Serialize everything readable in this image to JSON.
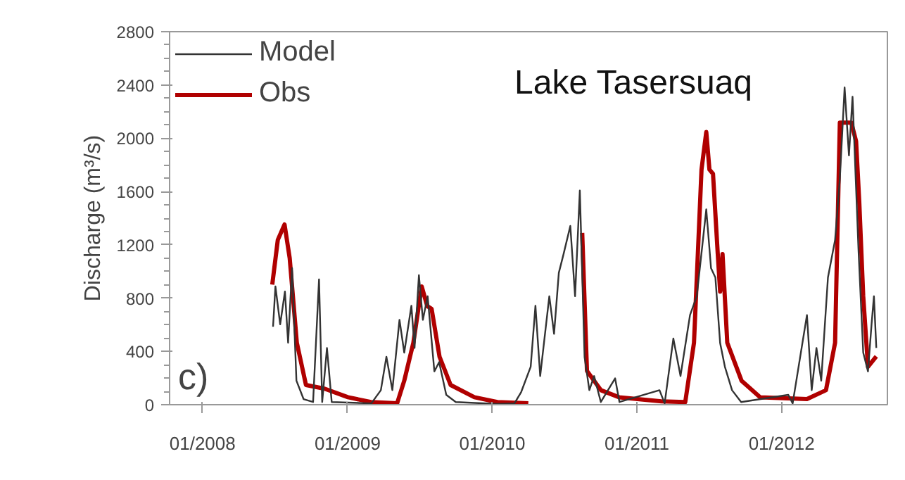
{
  "chart_data": {
    "type": "line",
    "title": "Lake Tasersuaq",
    "ylabel": "Discharge (m³/s)",
    "annotations": [
      "c)"
    ],
    "xlim": [
      "2007-10-10",
      "2012-09-24"
    ],
    "xticks": [
      {
        "value": "2008-01-01",
        "label": "01/2008"
      },
      {
        "value": "2009-01-01",
        "label": "01/2009"
      },
      {
        "value": "2010-01-01",
        "label": "01/2010"
      },
      {
        "value": "2011-01-01",
        "label": "01/2011"
      },
      {
        "value": "2012-01-01",
        "label": "01/2012"
      }
    ],
    "ylim": [
      0,
      2800
    ],
    "yticks": [
      0,
      400,
      800,
      1200,
      1600,
      2000,
      2400,
      2800
    ],
    "grid": false,
    "legend": "top left",
    "series": [
      {
        "name": "Model",
        "color": "#333333",
        "x": [
          "2008-06-27",
          "2008-07-03",
          "2008-07-15",
          "2008-07-27",
          "2008-08-04",
          "2008-08-14",
          "2008-08-25",
          "2008-09-12",
          "2008-10-06",
          "2008-10-21",
          "2008-10-29",
          "2008-11-10",
          "2008-11-22",
          "2009-03-02",
          "2009-03-26",
          "2009-04-09",
          "2009-04-24",
          "2009-05-12",
          "2009-05-24",
          "2009-06-11",
          "2009-06-19",
          "2009-06-30",
          "2009-07-10",
          "2009-07-22",
          "2009-08-08",
          "2009-08-20",
          "2009-09-07",
          "2009-10-01",
          "2010-01-15",
          "2010-02-26",
          "2010-03-15",
          "2010-04-08",
          "2010-04-20",
          "2010-05-02",
          "2010-05-25",
          "2010-06-06",
          "2010-06-18",
          "2010-06-30",
          "2010-07-17",
          "2010-07-29",
          "2010-08-10",
          "2010-08-22",
          "2010-09-03",
          "2010-09-15",
          "2010-10-02",
          "2010-11-07",
          "2010-11-18",
          "2011-02-27",
          "2011-03-12",
          "2011-04-03",
          "2011-04-21",
          "2011-05-15",
          "2011-06-01",
          "2011-06-25",
          "2011-07-07",
          "2011-07-18",
          "2011-07-30",
          "2011-08-11",
          "2011-08-29",
          "2011-09-21",
          "2012-01-18",
          "2012-01-29",
          "2012-03-05",
          "2012-03-17",
          "2012-03-29",
          "2012-04-10",
          "2012-04-27",
          "2012-05-15",
          "2012-05-27",
          "2012-06-08",
          "2012-06-19",
          "2012-06-28",
          "2012-07-13",
          "2012-07-25",
          "2012-08-06",
          "2012-08-15",
          "2012-08-21",
          "2012-08-27"
        ],
        "values": [
          585,
          888,
          603,
          849,
          465,
          1025,
          180,
          42,
          20,
          941,
          20,
          426,
          20,
          10,
          109,
          360,
          109,
          637,
          391,
          743,
          426,
          972,
          637,
          814,
          250,
          320,
          74,
          20,
          5,
          10,
          95,
          285,
          743,
          215,
          814,
          532,
          990,
          1131,
          1342,
          814,
          1607,
          356,
          109,
          215,
          20,
          198,
          20,
          109,
          10,
          497,
          215,
          673,
          814,
          1466,
          1025,
          955,
          462,
          285,
          109,
          20,
          74,
          10,
          673,
          109,
          426,
          180,
          955,
          1237,
          1694,
          2381,
          1871,
          2312,
          1166,
          391,
          250,
          603,
          814,
          426
        ]
      },
      {
        "name": "Obs",
        "color": "#b00000",
        "x": [
          "2008-06-25",
          "2008-07-09",
          "2008-07-26",
          "2008-08-08",
          "2008-08-26",
          "2008-09-18",
          "2008-11-04",
          "2009-01-02",
          "2009-03-01",
          "2009-05-06",
          "2009-05-24",
          "2009-06-16",
          "2009-07-07",
          "2009-07-21",
          "2009-08-01",
          "2009-08-21",
          "2009-09-18",
          "2009-11-17",
          "2010-01-14",
          "2010-04-02",
          "2010-06-01",
          "2010-08-16",
          "2010-08-28",
          "2010-10-02",
          "2010-11-17",
          "2011-03-04",
          "2011-05-03",
          "2011-05-25",
          "2011-06-13",
          "2011-06-25",
          "2011-07-03",
          "2011-07-12",
          "2011-07-24",
          "2011-07-30",
          "2011-08-05",
          "2011-08-17",
          "2011-09-22",
          "2011-11-08",
          "2012-03-05",
          "2012-04-22",
          "2012-05-15",
          "2012-05-27",
          "2012-06-11",
          "2012-06-25",
          "2012-07-07",
          "2012-07-15",
          "2012-07-25",
          "2012-08-06",
          "2012-08-27"
        ],
        "values": [
          902,
          1237,
          1353,
          1100,
          465,
          148,
          120,
          56,
          20,
          10,
          180,
          465,
          888,
          740,
          720,
          360,
          148,
          56,
          20,
          10,
          null,
          1290,
          254,
          109,
          56,
          25,
          20,
          465,
          1765,
          2047,
          1765,
          1733,
          1131,
          849,
          1131,
          465,
          180,
          56,
          42,
          109,
          465,
          2117,
          2117,
          2117,
          1977,
          1522,
          814,
          285,
          363
        ]
      }
    ]
  }
}
